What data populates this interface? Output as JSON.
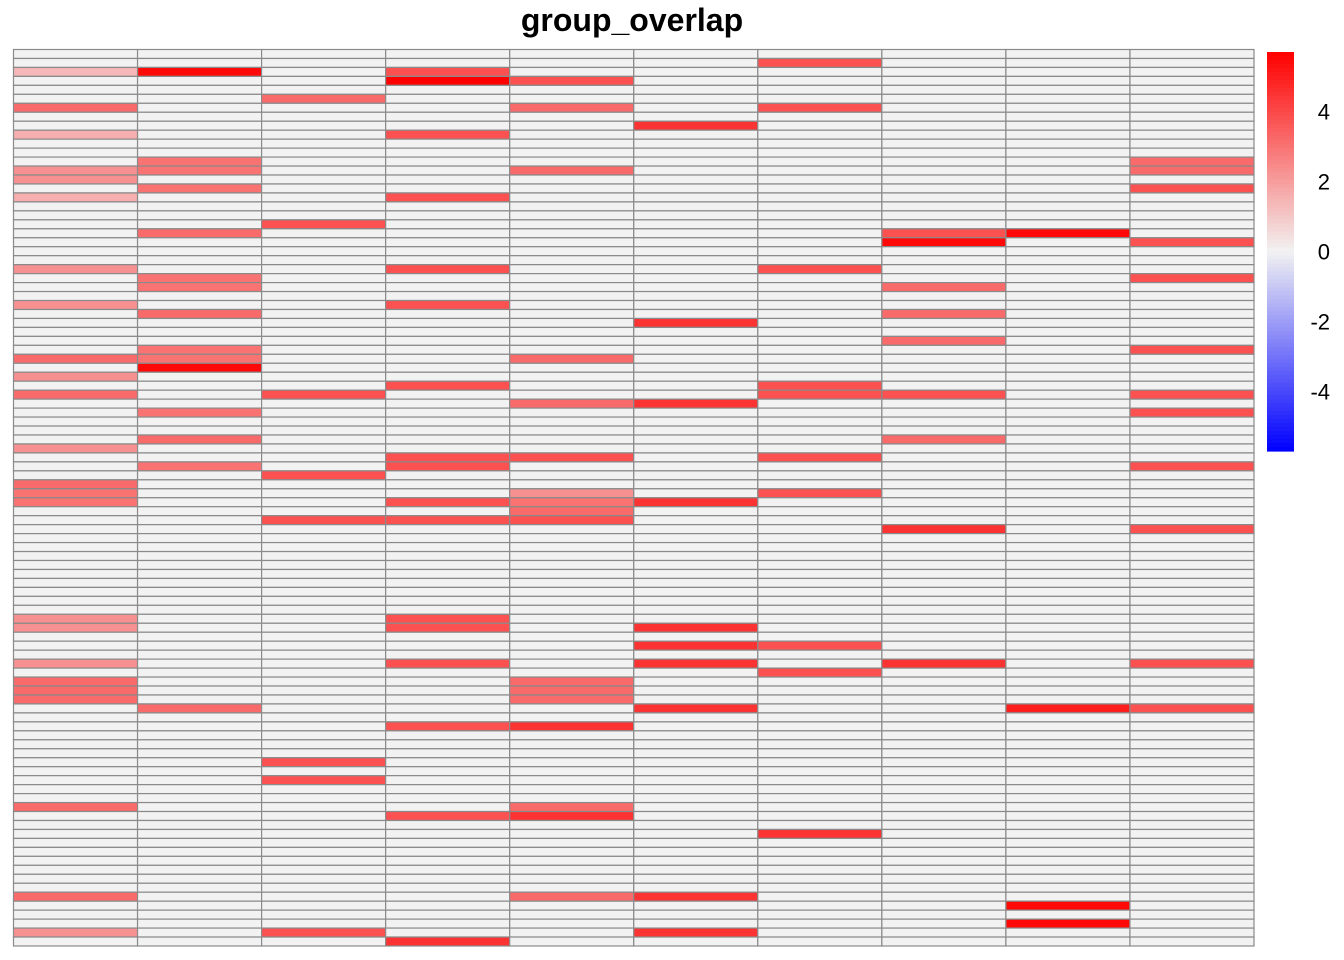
{
  "chart_data": {
    "type": "heatmap",
    "title": "group_overlap",
    "columns": 10,
    "rows": 100,
    "value_range": [
      -5.7,
      5.7
    ],
    "color_scale": {
      "low": "#0000ff",
      "mid": "#f2f2f2",
      "high": "#ff0000"
    },
    "background_value": 0,
    "legend": {
      "position": "right",
      "ticks": [
        4,
        2,
        0,
        -2,
        -4
      ]
    },
    "grid": true,
    "cells": [
      [
        0,
        2,
        1.4
      ],
      [
        0,
        6,
        3.2
      ],
      [
        0,
        9,
        1.6
      ],
      [
        0,
        13,
        2.3
      ],
      [
        0,
        14,
        2.3
      ],
      [
        0,
        16,
        1.6
      ],
      [
        0,
        24,
        2.3
      ],
      [
        0,
        28,
        2.3
      ],
      [
        0,
        34,
        3.2
      ],
      [
        0,
        36,
        2.3
      ],
      [
        0,
        38,
        3.2
      ],
      [
        0,
        44,
        2.3
      ],
      [
        0,
        48,
        3.2
      ],
      [
        0,
        49,
        3.0
      ],
      [
        0,
        50,
        3.0
      ],
      [
        0,
        63,
        2.3
      ],
      [
        0,
        64,
        2.3
      ],
      [
        0,
        68,
        2.3
      ],
      [
        0,
        70,
        3.2
      ],
      [
        0,
        71,
        3.2
      ],
      [
        0,
        72,
        3.2
      ],
      [
        0,
        84,
        3.2
      ],
      [
        0,
        94,
        3.2
      ],
      [
        0,
        98,
        2.3
      ],
      [
        1,
        2,
        5.5
      ],
      [
        1,
        12,
        3.0
      ],
      [
        1,
        13,
        3.0
      ],
      [
        1,
        15,
        3.0
      ],
      [
        1,
        20,
        3.2
      ],
      [
        1,
        25,
        3.0
      ],
      [
        1,
        26,
        3.0
      ],
      [
        1,
        29,
        3.2
      ],
      [
        1,
        33,
        3.0
      ],
      [
        1,
        34,
        3.0
      ],
      [
        1,
        35,
        5.5
      ],
      [
        1,
        40,
        3.0
      ],
      [
        1,
        43,
        3.2
      ],
      [
        1,
        46,
        3.0
      ],
      [
        1,
        73,
        3.2
      ],
      [
        2,
        5,
        3.2
      ],
      [
        2,
        19,
        3.8
      ],
      [
        2,
        38,
        3.8
      ],
      [
        2,
        47,
        3.8
      ],
      [
        2,
        52,
        3.8
      ],
      [
        2,
        79,
        3.8
      ],
      [
        2,
        81,
        3.8
      ],
      [
        2,
        98,
        3.8
      ],
      [
        3,
        2,
        3.8
      ],
      [
        3,
        3,
        5.7
      ],
      [
        3,
        9,
        3.8
      ],
      [
        3,
        16,
        3.8
      ],
      [
        3,
        24,
        3.8
      ],
      [
        3,
        28,
        3.8
      ],
      [
        3,
        37,
        3.8
      ],
      [
        3,
        45,
        3.8
      ],
      [
        3,
        46,
        3.8
      ],
      [
        3,
        50,
        3.8
      ],
      [
        3,
        52,
        3.8
      ],
      [
        3,
        63,
        3.8
      ],
      [
        3,
        64,
        3.8
      ],
      [
        3,
        68,
        3.8
      ],
      [
        3,
        75,
        3.8
      ],
      [
        3,
        85,
        3.8
      ],
      [
        3,
        99,
        4.5
      ],
      [
        4,
        3,
        3.8
      ],
      [
        4,
        6,
        3.2
      ],
      [
        4,
        13,
        3.2
      ],
      [
        4,
        34,
        3.2
      ],
      [
        4,
        39,
        3.2
      ],
      [
        4,
        45,
        3.8
      ],
      [
        4,
        49,
        2.3
      ],
      [
        4,
        50,
        3.0
      ],
      [
        4,
        51,
        3.2
      ],
      [
        4,
        52,
        3.8
      ],
      [
        4,
        70,
        3.2
      ],
      [
        4,
        71,
        3.2
      ],
      [
        4,
        72,
        3.2
      ],
      [
        4,
        75,
        4.5
      ],
      [
        4,
        84,
        3.2
      ],
      [
        4,
        85,
        4.5
      ],
      [
        4,
        94,
        3.2
      ],
      [
        5,
        8,
        4.5
      ],
      [
        5,
        30,
        4.5
      ],
      [
        5,
        39,
        4.5
      ],
      [
        5,
        50,
        4.5
      ],
      [
        5,
        64,
        4.5
      ],
      [
        5,
        66,
        4.5
      ],
      [
        5,
        68,
        4.5
      ],
      [
        5,
        73,
        4.5
      ],
      [
        5,
        94,
        4.5
      ],
      [
        5,
        98,
        4.5
      ],
      [
        6,
        1,
        3.8
      ],
      [
        6,
        6,
        3.8
      ],
      [
        6,
        24,
        3.8
      ],
      [
        6,
        37,
        3.8
      ],
      [
        6,
        38,
        3.8
      ],
      [
        6,
        45,
        3.8
      ],
      [
        6,
        49,
        3.8
      ],
      [
        6,
        66,
        3.8
      ],
      [
        6,
        69,
        3.8
      ],
      [
        6,
        87,
        4.5
      ],
      [
        7,
        20,
        3.8
      ],
      [
        7,
        21,
        5.5
      ],
      [
        7,
        26,
        3.2
      ],
      [
        7,
        29,
        3.2
      ],
      [
        7,
        32,
        3.2
      ],
      [
        7,
        38,
        3.8
      ],
      [
        7,
        43,
        3.2
      ],
      [
        7,
        53,
        4.5
      ],
      [
        7,
        68,
        4.5
      ],
      [
        8,
        20,
        5.5
      ],
      [
        8,
        73,
        5.0
      ],
      [
        8,
        95,
        5.5
      ],
      [
        8,
        97,
        5.5
      ],
      [
        9,
        12,
        3.2
      ],
      [
        9,
        13,
        3.2
      ],
      [
        9,
        15,
        3.8
      ],
      [
        9,
        21,
        3.8
      ],
      [
        9,
        25,
        3.8
      ],
      [
        9,
        33,
        3.8
      ],
      [
        9,
        38,
        3.8
      ],
      [
        9,
        40,
        3.8
      ],
      [
        9,
        46,
        3.8
      ],
      [
        9,
        53,
        3.8
      ],
      [
        9,
        68,
        3.8
      ],
      [
        9,
        73,
        3.8
      ]
    ]
  }
}
